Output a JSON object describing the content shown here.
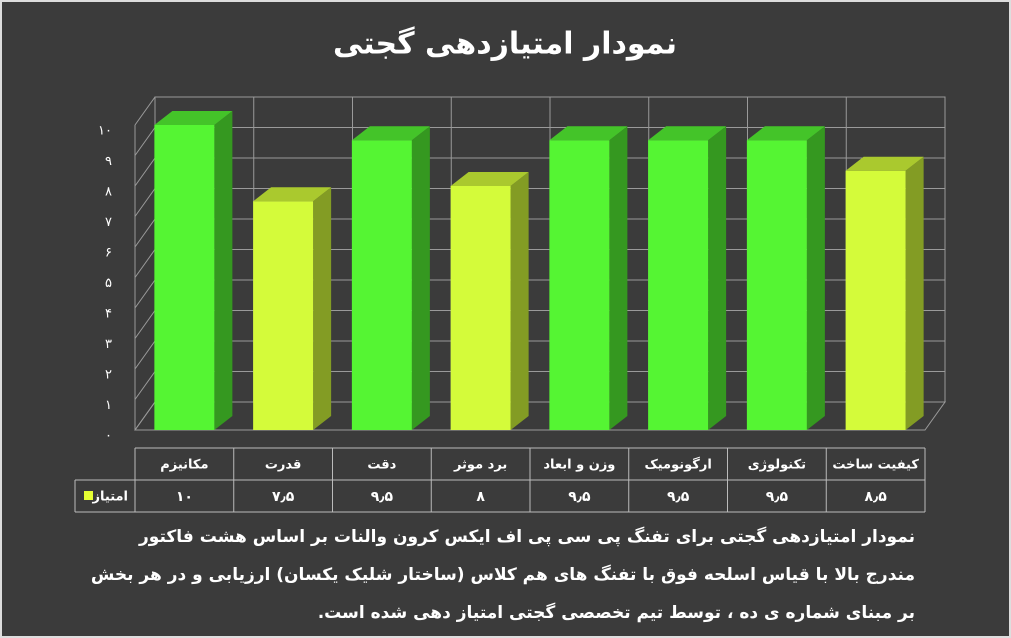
{
  "chart_data": {
    "type": "bar3d",
    "title": "نمودار امتیازدهی گجتی",
    "categories": [
      "مکانیزم",
      "قدرت",
      "دقت",
      "برد موثر",
      "وزن و ابعاد",
      "ارگونومیک",
      "تکنولوژی",
      "کیفیت ساخت"
    ],
    "series": [
      {
        "name": "امتیاز",
        "color": "#e6ff33",
        "values": [
          10,
          7.5,
          9.5,
          8,
          9.5,
          9.5,
          9.5,
          8.5
        ],
        "value_labels": [
          "۱۰",
          "۷٫۵",
          "۹٫۵",
          "۸",
          "۹٫۵",
          "۹٫۵",
          "۹٫۵",
          "۸٫۵"
        ],
        "colors": [
          "#55f533",
          "#d4fb3a",
          "#55f533",
          "#d4fb3a",
          "#55f533",
          "#55f533",
          "#55f533",
          "#d4fb3a"
        ]
      }
    ],
    "ylim": [
      0,
      10
    ],
    "yticks": [
      {
        "value": 0,
        "label": "۰"
      },
      {
        "value": 1,
        "label": "۱"
      },
      {
        "value": 2,
        "label": "۲"
      },
      {
        "value": 3,
        "label": "۳"
      },
      {
        "value": 4,
        "label": "۴"
      },
      {
        "value": 5,
        "label": "۵"
      },
      {
        "value": 6,
        "label": "۶"
      },
      {
        "value": 7,
        "label": "۷"
      },
      {
        "value": 8,
        "label": "۸"
      },
      {
        "value": 9,
        "label": "۹"
      },
      {
        "value": 10,
        "label": "۱۰"
      }
    ],
    "grid": true,
    "caption": "نمودار امتیازدهی گجتی برای تفنگ پی سی پی اف ایکس کرون والنات بر اساس هشت فاکتور مندرج بالا با قیاس اسلحه فوق با تفنگ های هم کلاس (ساختار شلیک یکسان) ارزیابی و در هر بخش بر مبنای شماره ی ده ، توسط تیم تخصصی گجتی امتیاز دهی شده است."
  }
}
